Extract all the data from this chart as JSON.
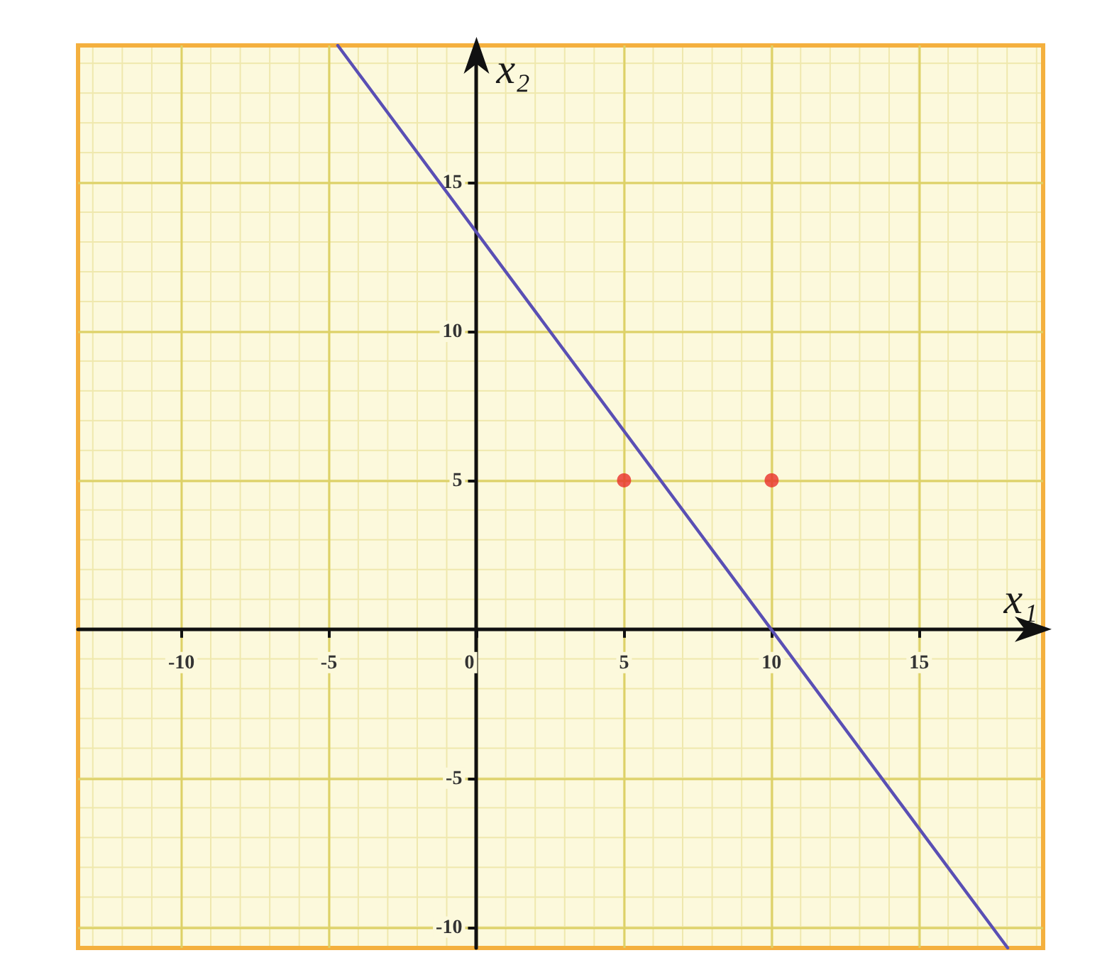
{
  "chart_data": {
    "type": "scatter",
    "xlabel": "x₁",
    "ylabel": "x₂",
    "series": [
      {
        "type": "line",
        "color": "#5a4fb4",
        "marker": "none",
        "x": [
          -4.7,
          18
        ],
        "values": [
          19.6,
          -10.7
        ]
      },
      {
        "color": "#e8302a",
        "x": [
          5,
          10
        ],
        "values": [
          5,
          5
        ]
      }
    ],
    "marker": "circle",
    "xlim": [
      -13.5,
      19.2
    ],
    "ylim": [
      -10.7,
      19.6
    ],
    "xticks": [
      -10,
      -5,
      0,
      5,
      10,
      15
    ],
    "yticks": [
      -10,
      -5,
      5,
      10,
      15
    ],
    "grid": true
  }
}
